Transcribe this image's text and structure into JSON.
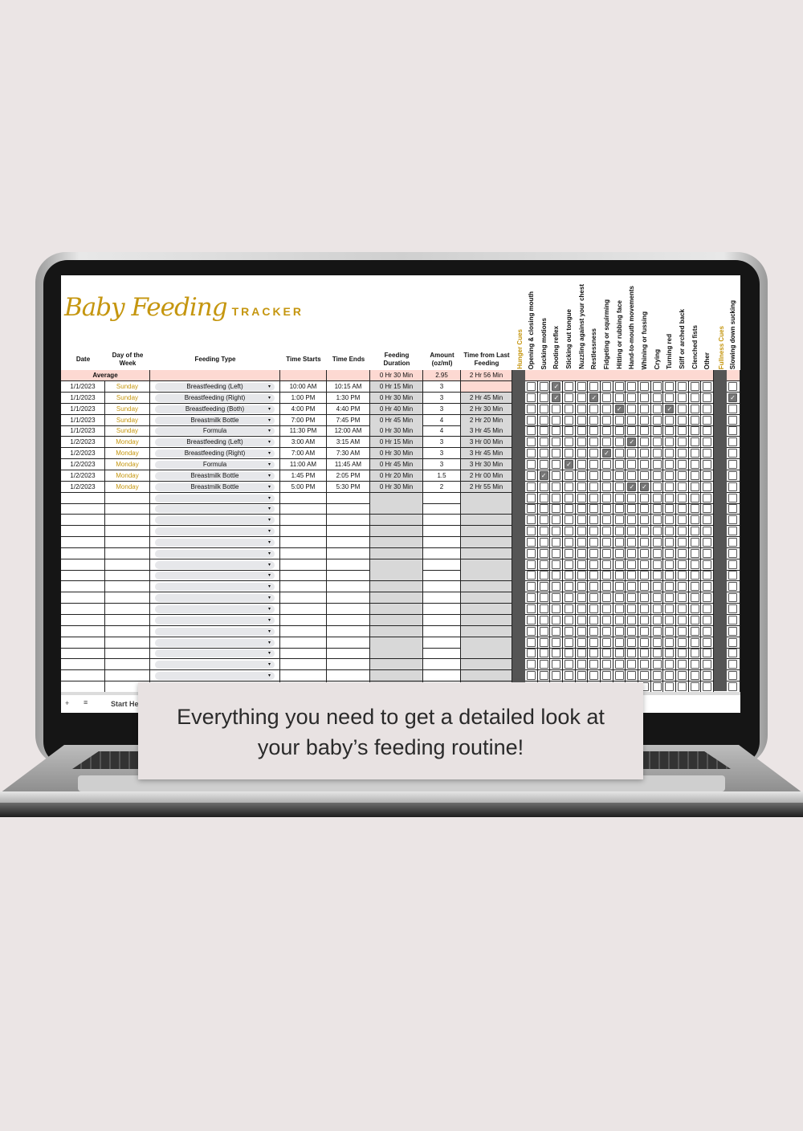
{
  "title": {
    "script": "Baby Feeding",
    "word": "TRACKER"
  },
  "headers": {
    "date": "Date",
    "day": "Day of the Week",
    "type": "Feeding Type",
    "start": "Time Starts",
    "end": "Time Ends",
    "duration": "Feeding Duration",
    "amount": "Amount (oz/ml)",
    "from_last": "Time from Last Feeding"
  },
  "hunger_header": "Hunger Cues",
  "hunger_cues": [
    "Opening & closing mouth",
    "Sucking motions",
    "Rooting reflex",
    "Sticking out tongue",
    "Nuzzling against your chest",
    "Restlessness",
    "Fidgeting or squirming",
    "Hitting or rubbing face",
    "Hand-to-mouth movements",
    "Whining or fussing",
    "Crying",
    "Turning red",
    "Stiff or arched back",
    "Clenched fists",
    "Other"
  ],
  "fullness_header": "Fullness Cues",
  "fullness_cues": [
    "Slowing down sucking"
  ],
  "average": {
    "label": "Average",
    "duration": "0 Hr 30 Min",
    "amount": "2.95",
    "from_last": "2 Hr 56 Min"
  },
  "rows": [
    {
      "date": "1/1/2023",
      "day": "Sunday",
      "type": "Breastfeeding (Left)",
      "start": "10:00 AM",
      "end": "10:15 AM",
      "duration": "0 Hr 15 Min",
      "amount": "3",
      "from_last": "",
      "hunger": [
        2
      ],
      "fullness": []
    },
    {
      "date": "1/1/2023",
      "day": "Sunday",
      "type": "Breastfeeding (Right)",
      "start": "1:00 PM",
      "end": "1:30 PM",
      "duration": "0 Hr 30 Min",
      "amount": "3",
      "from_last": "2 Hr 45 Min",
      "hunger": [
        2,
        5
      ],
      "fullness": [
        0
      ]
    },
    {
      "date": "1/1/2023",
      "day": "Sunday",
      "type": "Breastfeeding (Both)",
      "start": "4:00 PM",
      "end": "4:40 PM",
      "duration": "0 Hr 40 Min",
      "amount": "3",
      "from_last": "2 Hr 30 Min",
      "hunger": [
        7,
        11
      ],
      "fullness": []
    },
    {
      "date": "1/1/2023",
      "day": "Sunday",
      "type": "Breastmilk Bottle",
      "start": "7:00 PM",
      "end": "7:45 PM",
      "duration": "0 Hr 45 Min",
      "amount": "4",
      "from_last": "2 Hr 20 Min",
      "hunger": [],
      "fullness": []
    },
    {
      "date": "1/1/2023",
      "day": "Sunday",
      "type": "Formula",
      "start": "11:30 PM",
      "end": "12:00 AM",
      "duration": "0 Hr 30 Min",
      "amount": "4",
      "from_last": "3 Hr 45 Min",
      "hunger": [],
      "fullness": []
    },
    {
      "date": "1/2/2023",
      "day": "Monday",
      "type": "Breastfeeding (Left)",
      "start": "3:00 AM",
      "end": "3:15 AM",
      "duration": "0 Hr 15 Min",
      "amount": "3",
      "from_last": "3 Hr 00 Min",
      "hunger": [
        8
      ],
      "fullness": []
    },
    {
      "date": "1/2/2023",
      "day": "Monday",
      "type": "Breastfeeding (Right)",
      "start": "7:00 AM",
      "end": "7:30 AM",
      "duration": "0 Hr 30 Min",
      "amount": "3",
      "from_last": "3 Hr 45 Min",
      "hunger": [
        6
      ],
      "fullness": []
    },
    {
      "date": "1/2/2023",
      "day": "Monday",
      "type": "Formula",
      "start": "11:00 AM",
      "end": "11:45 AM",
      "duration": "0 Hr 45 Min",
      "amount": "3",
      "from_last": "3 Hr 30 Min",
      "hunger": [
        3
      ],
      "fullness": []
    },
    {
      "date": "1/2/2023",
      "day": "Monday",
      "type": "Breastmilk Bottle",
      "start": "1:45 PM",
      "end": "2:05 PM",
      "duration": "0 Hr 20 Min",
      "amount": "1.5",
      "from_last": "2 Hr 00 Min",
      "hunger": [
        1
      ],
      "fullness": []
    },
    {
      "date": "1/2/2023",
      "day": "Monday",
      "type": "Breastmilk Bottle",
      "start": "5:00 PM",
      "end": "5:30 PM",
      "duration": "0 Hr 30 Min",
      "amount": "2",
      "from_last": "2 Hr 55 Min",
      "hunger": [
        8,
        9
      ],
      "fullness": []
    }
  ],
  "sheet_tab": "Start He",
  "icons": {
    "add": "+",
    "menu": "≡",
    "dropdown": "▾",
    "check": "✓"
  },
  "colors": {
    "gold": "#c5960f",
    "pink": "#fdd9d2",
    "gray": "#d8d8d8"
  },
  "caption": {
    "line1": "Everything you need to get a detailed look at",
    "line2": "your baby’s feeding routine!"
  }
}
